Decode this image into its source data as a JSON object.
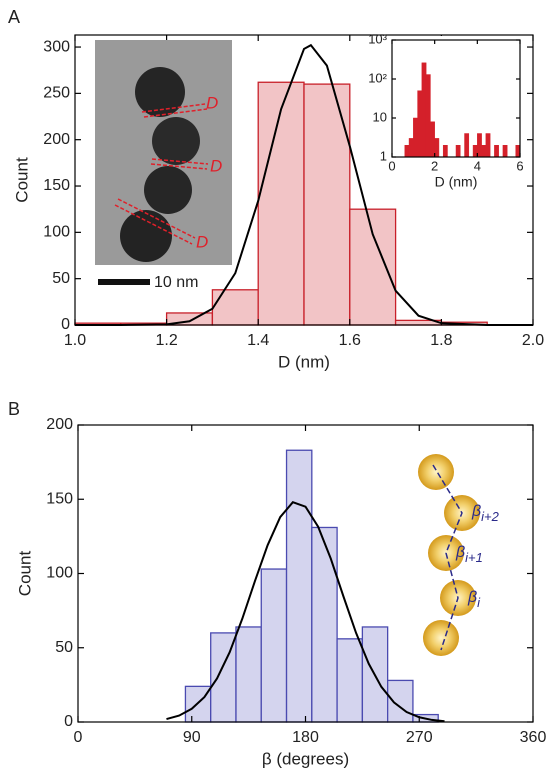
{
  "chart_data": [
    {
      "type": "histogram",
      "panel_label": "A",
      "xlabel": "D (nm)",
      "ylabel": "Count",
      "bins": [
        1.0,
        1.1,
        1.2,
        1.3,
        1.4,
        1.5,
        1.6,
        1.7,
        1.8,
        1.9,
        2.0
      ],
      "values": [
        2,
        2,
        13,
        38,
        262,
        260,
        125,
        5,
        3,
        0
      ],
      "color": "#f2c4c6",
      "edgecolor": "#c8202a",
      "xlim": [
        1.0,
        2.0
      ],
      "xticks": [
        {
          "value": 1.0,
          "label": "1.0"
        },
        {
          "value": 1.2,
          "label": "1.2"
        },
        {
          "value": 1.4,
          "label": "1.4"
        },
        {
          "value": 1.6,
          "label": "1.6"
        },
        {
          "value": 1.8,
          "label": "1.8"
        },
        {
          "value": 2.0,
          "label": "2.0"
        }
      ],
      "ylim": [
        0,
        313
      ],
      "yticks": [
        0,
        50,
        100,
        150,
        200,
        250,
        300
      ],
      "fit": {
        "color": "#000000",
        "x": [
          1.0,
          1.1,
          1.2,
          1.25,
          1.3,
          1.35,
          1.4,
          1.45,
          1.5,
          1.515,
          1.55,
          1.6,
          1.65,
          1.7,
          1.75,
          1.8,
          1.9,
          2.0
        ],
        "values": [
          0,
          0,
          0.7,
          4,
          17.5,
          56,
          134,
          233,
          298,
          302,
          280,
          193,
          98,
          37,
          10,
          2,
          0,
          0
        ]
      },
      "annotations": {
        "marker": [
          "D",
          "D",
          "D"
        ],
        "scale_bar": "10 nm"
      }
    },
    {
      "type": "histogram",
      "xlabel": "D (nm)",
      "log_y": true,
      "bins": [
        0,
        0.2,
        0.4,
        0.6,
        0.8,
        1.0,
        1.2,
        1.4,
        1.6,
        1.8,
        2.0,
        2.2,
        2.4,
        2.6,
        2.8,
        3.0,
        3.2,
        3.4,
        3.6,
        3.8,
        4.0,
        4.2,
        4.4,
        4.6,
        4.8,
        5.0,
        5.2,
        5.4,
        5.6,
        5.8,
        6.0
      ],
      "values": [
        0,
        0,
        1,
        2,
        3,
        10,
        50,
        260,
        130,
        8,
        3,
        1,
        2,
        0,
        1,
        2,
        1,
        4,
        1,
        2,
        4,
        2,
        4,
        1,
        2,
        1,
        2,
        1,
        1,
        2
      ],
      "color": "#d4202a",
      "edgecolor": "#d4202a",
      "xlim": [
        0,
        6
      ],
      "xticks": [
        0,
        2,
        4,
        6
      ],
      "ylim": [
        1,
        1000
      ],
      "yticks": [
        1,
        10,
        {
          "value": 100,
          "label": "10²"
        },
        {
          "value": 1000,
          "label": "10³"
        }
      ]
    },
    {
      "type": "histogram",
      "panel_label": "B",
      "xlabel": "β (degrees)",
      "ylabel": "Count",
      "bins": [
        85,
        105,
        125,
        145,
        165,
        185,
        205,
        225,
        245,
        265,
        285
      ],
      "values": [
        24,
        60,
        64,
        103,
        183,
        131,
        56,
        64,
        28,
        5
      ],
      "color": "#d4d4ee",
      "edgecolor": "#4a4ab0",
      "xlim": [
        0,
        360
      ],
      "xticks": [
        0,
        90,
        180,
        270,
        360
      ],
      "ylim": [
        0,
        200
      ],
      "yticks": [
        0,
        50,
        100,
        150,
        200
      ],
      "fit": {
        "color": "#000000",
        "x": [
          70,
          80,
          90,
          100,
          110,
          120,
          130,
          140,
          150,
          160,
          170,
          180,
          190,
          200,
          210,
          220,
          230,
          240,
          250,
          260,
          270,
          280,
          290
        ],
        "values": [
          2,
          4.3,
          8.9,
          16.8,
          29.3,
          47,
          69.6,
          94.9,
          119,
          138,
          148,
          145,
          131.5,
          110,
          84.6,
          60,
          39.3,
          23.7,
          13.2,
          6.7,
          3.2,
          1.4,
          0.5
        ]
      },
      "annotations": {
        "angles": [
          {
            "symbol": "β",
            "sub": "i+2"
          },
          {
            "symbol": "β",
            "sub": "i+1"
          },
          {
            "symbol": "β",
            "sub": "i"
          }
        ]
      }
    }
  ]
}
